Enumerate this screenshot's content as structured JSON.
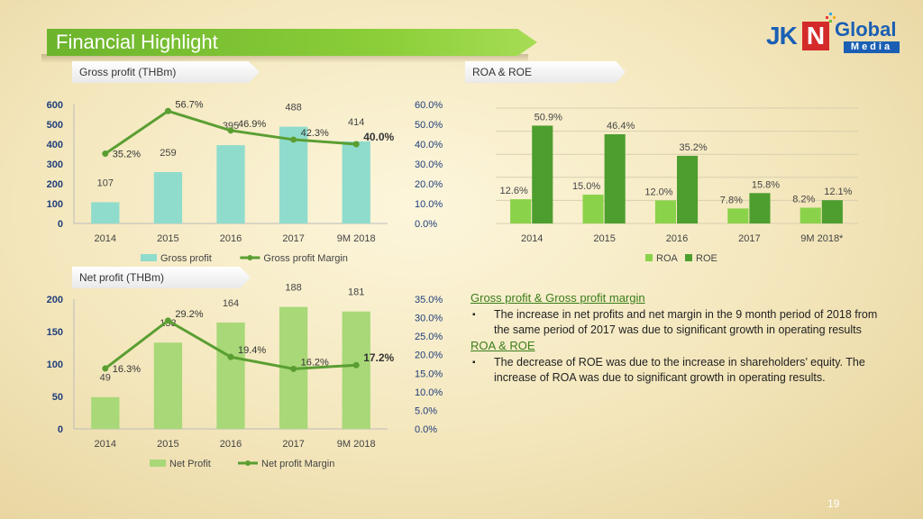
{
  "header": {
    "title": "Financial Highlight"
  },
  "logo": {
    "jk": "JK",
    "n": "N",
    "global": "Global",
    "media": "Media"
  },
  "page_number": "19",
  "colors": {
    "gross_bar": "#8fdccc",
    "net_bar": "#a8d878",
    "line": "#5a9e32",
    "roa": "#8ad24a",
    "roe": "#4d9e2e",
    "axis_text": "#1f3d7a"
  },
  "text": {
    "gross_head": "Gross profit & Gross profit margin",
    "gross_bullet": "The increase in net profits and net margin in the 9 month period of 2018 from the same period of 2017 was due to significant growth in operating results",
    "roa_head": "ROA & ROE",
    "roa_bullet": "The decrease of ROE was due to the increase in shareholders’ equity. The increase of ROA was due to significant growth in operating results."
  },
  "chart_data": [
    {
      "id": "gross",
      "type": "bar",
      "title": "Gross profit (THBm)",
      "categories": [
        "2014",
        "2015",
        "2016",
        "2017",
        "9M 2018"
      ],
      "series": [
        {
          "name": "Gross profit",
          "type": "bar",
          "values": [
            107,
            259,
            395,
            488,
            414
          ],
          "labels": [
            "107",
            "259",
            "395",
            "488",
            "414"
          ]
        },
        {
          "name": "Gross profit Margin",
          "type": "line",
          "axis": "right",
          "values": [
            35.2,
            56.7,
            46.9,
            42.3,
            40.0
          ],
          "labels": [
            "35.2%",
            "56.7%",
            "46.9%",
            "42.3%",
            "40.0%"
          ]
        }
      ],
      "ylim": [
        0,
        600
      ],
      "yticks": [
        "0",
        "100",
        "200",
        "300",
        "400",
        "500",
        "600"
      ],
      "y2lim": [
        0,
        60
      ],
      "y2ticks": [
        "0.0%",
        "10.0%",
        "20.0%",
        "30.0%",
        "40.0%",
        "50.0%",
        "60.0%"
      ],
      "legend": "bottom"
    },
    {
      "id": "roa",
      "type": "bar",
      "title": "ROA & ROE",
      "categories": [
        "2014",
        "2015",
        "2016",
        "2017",
        "9M 2018*"
      ],
      "series": [
        {
          "name": "ROA",
          "values": [
            12.6,
            15.0,
            12.0,
            7.8,
            8.2
          ],
          "labels": [
            "12.6%",
            "15.0%",
            "12.0%",
            "7.8%",
            "8.2%"
          ]
        },
        {
          "name": "ROE",
          "values": [
            50.9,
            46.4,
            35.2,
            15.8,
            12.1
          ],
          "labels": [
            "50.9%",
            "46.4%",
            "35.2%",
            "15.8%",
            "12.1%"
          ]
        }
      ],
      "ylim": [
        0,
        60
      ],
      "grid": true,
      "legend": "bottom"
    },
    {
      "id": "net",
      "type": "bar",
      "title": "Net profit (THBm)",
      "categories": [
        "2014",
        "2015",
        "2016",
        "2017",
        "9M 2018"
      ],
      "series": [
        {
          "name": "Net Profit",
          "type": "bar",
          "values": [
            49,
            133,
            164,
            188,
            181
          ],
          "labels": [
            "49",
            "133",
            "164",
            "188",
            "181"
          ]
        },
        {
          "name": "Net profit Margin",
          "type": "line",
          "axis": "right",
          "values": [
            16.3,
            29.2,
            19.4,
            16.2,
            17.2
          ],
          "labels": [
            "16.3%",
            "29.2%",
            "19.4%",
            "16.2%",
            "17.2%"
          ]
        }
      ],
      "ylim": [
        0,
        200
      ],
      "yticks": [
        "0",
        "50",
        "100",
        "150",
        "200"
      ],
      "y2lim": [
        0,
        35
      ],
      "y2ticks": [
        "0.0%",
        "5.0%",
        "10.0%",
        "15.0%",
        "20.0%",
        "25.0%",
        "30.0%",
        "35.0%"
      ],
      "legend": "bottom"
    }
  ]
}
